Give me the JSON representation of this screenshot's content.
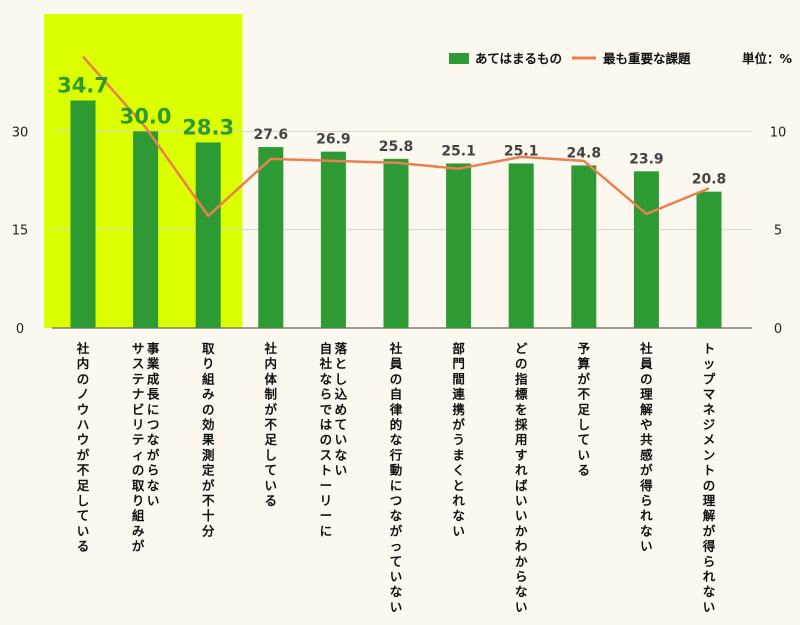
{
  "chart_data": {
    "type": "bar",
    "categories": [
      "社内のノウハウが不足している",
      "サステナビリティの取り組みが\n事業成長につながらない",
      "取り組みの効果測定が不十分",
      "社内体制が不足している",
      "自社ならではのストーリーに\n落とし込めていない",
      "社員の自律的な行動につながっていない",
      "部門間連携がうまくとれない",
      "どの指標を採用すればいいかわからない",
      "予算が不足している",
      "社員の理解や共感が得られない",
      "トップマネジメントの理解が得られない"
    ],
    "series": [
      {
        "name": "あてはまるもの",
        "type": "bar",
        "axis": "left",
        "color": "#2e9a33",
        "values": [
          34.7,
          30.0,
          28.3,
          27.6,
          26.9,
          25.8,
          25.1,
          25.1,
          24.8,
          23.9,
          20.8
        ],
        "labels": [
          "34.7",
          "30.0",
          "28.3",
          "27.6",
          "26.9",
          "25.8",
          "25.1",
          "25.1",
          "24.8",
          "23.9",
          "20.8"
        ]
      },
      {
        "name": "最も重要な課題",
        "type": "line",
        "axis": "right",
        "color": "#e8804f",
        "values": [
          13.8,
          10.2,
          5.7,
          8.6,
          8.5,
          8.4,
          8.1,
          8.7,
          8.5,
          5.8,
          7.1
        ]
      }
    ],
    "y_left": {
      "min": 0,
      "max": 45,
      "ticks": [
        "0",
        "15",
        "30"
      ],
      "tick_values": [
        0,
        15,
        30
      ]
    },
    "y_right": {
      "min": 0,
      "max": 15,
      "ticks": [
        "0",
        "5",
        "10"
      ],
      "tick_values": [
        0,
        5,
        10
      ]
    },
    "unit_label": "単位：%",
    "highlight_count": 3,
    "highlight_color": "#dcff00",
    "highlight_label_color": "#2e9a33",
    "label_color": "#444444",
    "grid": true,
    "legend_position": "top-right"
  }
}
